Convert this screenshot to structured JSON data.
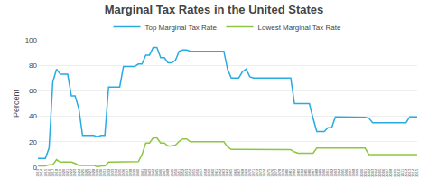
{
  "chart_data": {
    "type": "line",
    "title": "Marginal Tax Rates in the United States",
    "ylabel": "Percent",
    "x": [
      1913,
      1914,
      1915,
      1916,
      1917,
      1918,
      1919,
      1920,
      1921,
      1922,
      1923,
      1924,
      1925,
      1926,
      1927,
      1928,
      1929,
      1930,
      1931,
      1932,
      1933,
      1934,
      1935,
      1936,
      1937,
      1938,
      1939,
      1940,
      1941,
      1942,
      1943,
      1944,
      1945,
      1946,
      1947,
      1948,
      1949,
      1950,
      1951,
      1952,
      1953,
      1954,
      1955,
      1956,
      1957,
      1958,
      1959,
      1960,
      1961,
      1962,
      1963,
      1964,
      1965,
      1966,
      1967,
      1968,
      1969,
      1970,
      1971,
      1972,
      1973,
      1974,
      1975,
      1976,
      1977,
      1978,
      1979,
      1980,
      1981,
      1982,
      1983,
      1984,
      1985,
      1986,
      1987,
      1988,
      1989,
      1990,
      1991,
      1992,
      1993,
      1994,
      1995,
      1996,
      1997,
      1998,
      1999,
      2000,
      2001,
      2002,
      2003,
      2004,
      2005,
      2006,
      2007,
      2008,
      2009,
      2010,
      2011,
      2012,
      2013,
      2014,
      2015
    ],
    "series": [
      {
        "name": "Top Marginal Tax Rate",
        "color": "#29abe2",
        "values": [
          7,
          7,
          7,
          15,
          67,
          77,
          73,
          73,
          73,
          56,
          56,
          46,
          25,
          25,
          25,
          25,
          24,
          25,
          25,
          63,
          63,
          63,
          63,
          79,
          79,
          79,
          79,
          81,
          81,
          88,
          88,
          94,
          94,
          86,
          86,
          82,
          82,
          84,
          91,
          92,
          92,
          91,
          91,
          91,
          91,
          91,
          91,
          91,
          91,
          91,
          91,
          77,
          70,
          70,
          70,
          75,
          77,
          71,
          70,
          70,
          70,
          70,
          70,
          70,
          70,
          70,
          70,
          70,
          70,
          50,
          50,
          50,
          50,
          50,
          38.5,
          28,
          28,
          28,
          31,
          31,
          39.6,
          39.6,
          39.6,
          39.6,
          39.6,
          39.6,
          39.6,
          39.6,
          39.1,
          38.6,
          35,
          35,
          35,
          35,
          35,
          35,
          35,
          35,
          35,
          35,
          39.6,
          39.6,
          39.6
        ]
      },
      {
        "name": "Lowest Marginal Tax Rate",
        "color": "#8dc63f",
        "values": [
          1,
          1,
          1,
          2,
          2,
          6,
          4,
          4,
          4,
          4,
          3,
          1.5,
          1.5,
          1.5,
          1.5,
          1.5,
          0.375,
          1.125,
          1.125,
          4,
          4,
          4,
          4,
          4,
          4,
          4,
          4,
          4.4,
          10,
          19,
          19,
          23,
          23,
          19,
          19,
          16.6,
          16.6,
          17.4,
          20.4,
          22.2,
          22.2,
          20,
          20,
          20,
          20,
          20,
          20,
          20,
          20,
          20,
          20,
          16,
          14,
          14,
          14,
          14,
          14,
          14,
          14,
          14,
          14,
          14,
          14,
          14,
          14,
          14,
          14,
          14,
          13.825,
          12,
          11,
          11,
          11,
          11,
          11,
          15,
          15,
          15,
          15,
          15,
          15,
          15,
          15,
          15,
          15,
          15,
          15,
          15,
          15,
          10,
          10,
          10,
          10,
          10,
          10,
          10,
          10,
          10,
          10,
          10,
          10,
          10,
          10
        ]
      }
    ],
    "xlim": [
      1913,
      2015
    ],
    "xticks": [
      1913,
      1914,
      1915,
      1916,
      1917,
      1918,
      1919,
      1920,
      1921,
      1922,
      1923,
      1924,
      1925,
      1926,
      1927,
      1928,
      1929,
      1930,
      1931,
      1932,
      1933,
      1934,
      1935,
      1936,
      1937,
      1938,
      1939,
      1940,
      1941,
      1942,
      1943,
      1944,
      1945,
      1946,
      1947,
      1948,
      1949,
      1950,
      1951,
      1952,
      1953,
      1954,
      1955,
      1956,
      1957,
      1958,
      1959,
      1960,
      1961,
      1962,
      1963,
      1964,
      1965,
      1966,
      1967,
      1968,
      1969,
      1970,
      1971,
      1972,
      1973,
      1974,
      1975,
      1976,
      1977,
      1978,
      1979,
      1980,
      1981,
      1982,
      1983,
      1984,
      1985,
      1986,
      1987,
      1988,
      1989,
      1990,
      1991,
      1992,
      1993,
      1994,
      1995,
      1996,
      1997,
      1998,
      1999,
      2000,
      2001,
      2002,
      2003,
      2004,
      2005,
      2006,
      2007,
      2008,
      2009,
      2010,
      2011,
      2012,
      2013,
      2014,
      2015
    ],
    "ylim": [
      0,
      100
    ],
    "yticks": [
      0,
      20,
      40,
      60,
      80,
      100
    ],
    "grid": "y",
    "legend": "upper center"
  }
}
